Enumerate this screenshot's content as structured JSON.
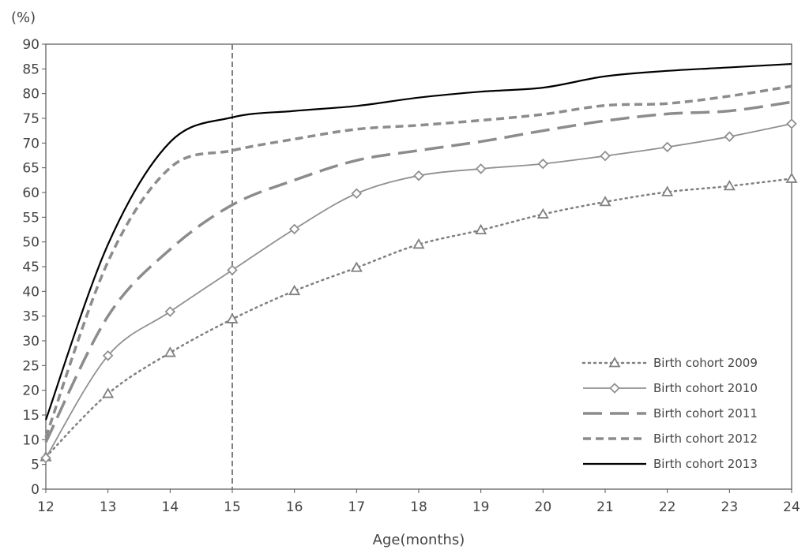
{
  "chart_data": {
    "type": "line",
    "title": "",
    "xlabel": "Age(months)",
    "ylabel": "(%)",
    "x": [
      12,
      13,
      14,
      15,
      16,
      17,
      18,
      19,
      20,
      21,
      22,
      23,
      24
    ],
    "xlim": [
      12,
      24
    ],
    "ylim": [
      0,
      90
    ],
    "yticks": [
      0,
      5,
      10,
      15,
      20,
      25,
      30,
      35,
      40,
      45,
      50,
      55,
      60,
      65,
      70,
      75,
      80,
      85,
      90
    ],
    "reference_line_x": 15,
    "legend_position": "bottom-right",
    "grid": false,
    "series": [
      {
        "name": "Birth cohort 2009",
        "color": "#808080",
        "style": "dotted",
        "marker": "triangle",
        "values": [
          6.5,
          19.3,
          27.6,
          34.4,
          40.1,
          44.8,
          49.5,
          52.4,
          55.6,
          58.1,
          60.1,
          61.3,
          62.8
        ]
      },
      {
        "name": "Birth cohort 2010",
        "color": "#909090",
        "style": "solid",
        "marker": "diamond",
        "values": [
          6.3,
          27.0,
          35.9,
          44.3,
          52.6,
          59.8,
          63.4,
          64.8,
          65.8,
          67.4,
          69.2,
          71.3,
          73.9
        ]
      },
      {
        "name": "Birth cohort 2011",
        "color": "#8c8c8c",
        "style": "long-dash",
        "marker": "none",
        "values": [
          9.5,
          35.0,
          48.5,
          57.5,
          62.5,
          66.5,
          68.5,
          70.3,
          72.5,
          74.5,
          75.9,
          76.5,
          78.3
        ]
      },
      {
        "name": "Birth cohort 2012",
        "color": "#8c8c8c",
        "style": "short-dash",
        "marker": "none",
        "values": [
          10.5,
          46.0,
          65.0,
          68.5,
          70.8,
          72.8,
          73.6,
          74.6,
          75.8,
          77.6,
          78.0,
          79.5,
          81.5
        ]
      },
      {
        "name": "Birth cohort 2013",
        "color": "#000000",
        "style": "solid",
        "marker": "none",
        "values": [
          14.0,
          49.5,
          70.2,
          75.2,
          76.5,
          77.5,
          79.2,
          80.4,
          81.2,
          83.5,
          84.6,
          85.3,
          86.0
        ]
      }
    ]
  }
}
